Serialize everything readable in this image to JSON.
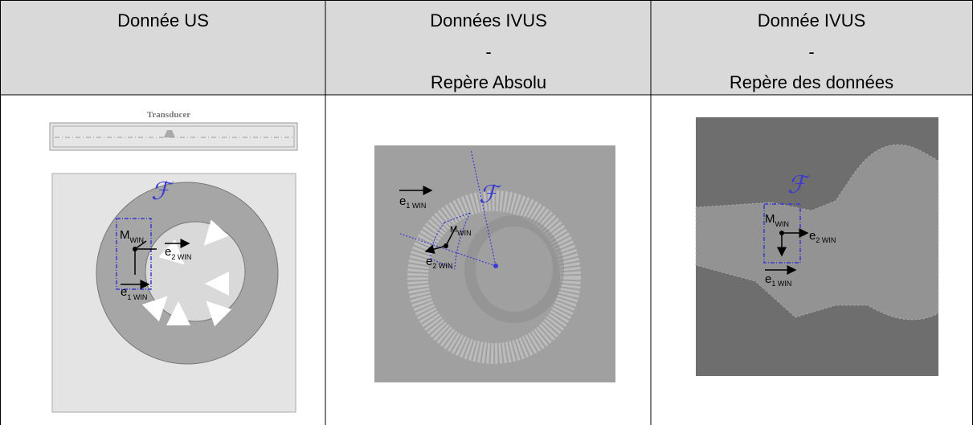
{
  "table": {
    "header": [
      [
        "Donnée US"
      ],
      [
        "Données IVUS",
        "-",
        "Repère Absolu"
      ],
      [
        "Donnée IVUS",
        "-",
        "Repère des données"
      ]
    ]
  },
  "figures": [
    {
      "title": "Transducer",
      "frame": "ℱ",
      "labels": [
        {
          "main": "M",
          "sub": "WIN"
        },
        {
          "main": "e",
          "sub": "2 WIN"
        },
        {
          "main": "e",
          "sub": "1 WIN"
        }
      ]
    },
    {
      "frame": "ℱ",
      "labels": [
        {
          "main": "e",
          "sub": "1 WIN"
        },
        {
          "main": "M",
          "sub": "WIN"
        },
        {
          "main": "e",
          "sub": "2 WIN"
        }
      ]
    },
    {
      "frame": "ℱ",
      "labels": [
        {
          "main": "M",
          "sub": "WIN"
        },
        {
          "main": "e",
          "sub": "2 WIN"
        },
        {
          "main": "e",
          "sub": "1 WIN"
        }
      ]
    }
  ]
}
